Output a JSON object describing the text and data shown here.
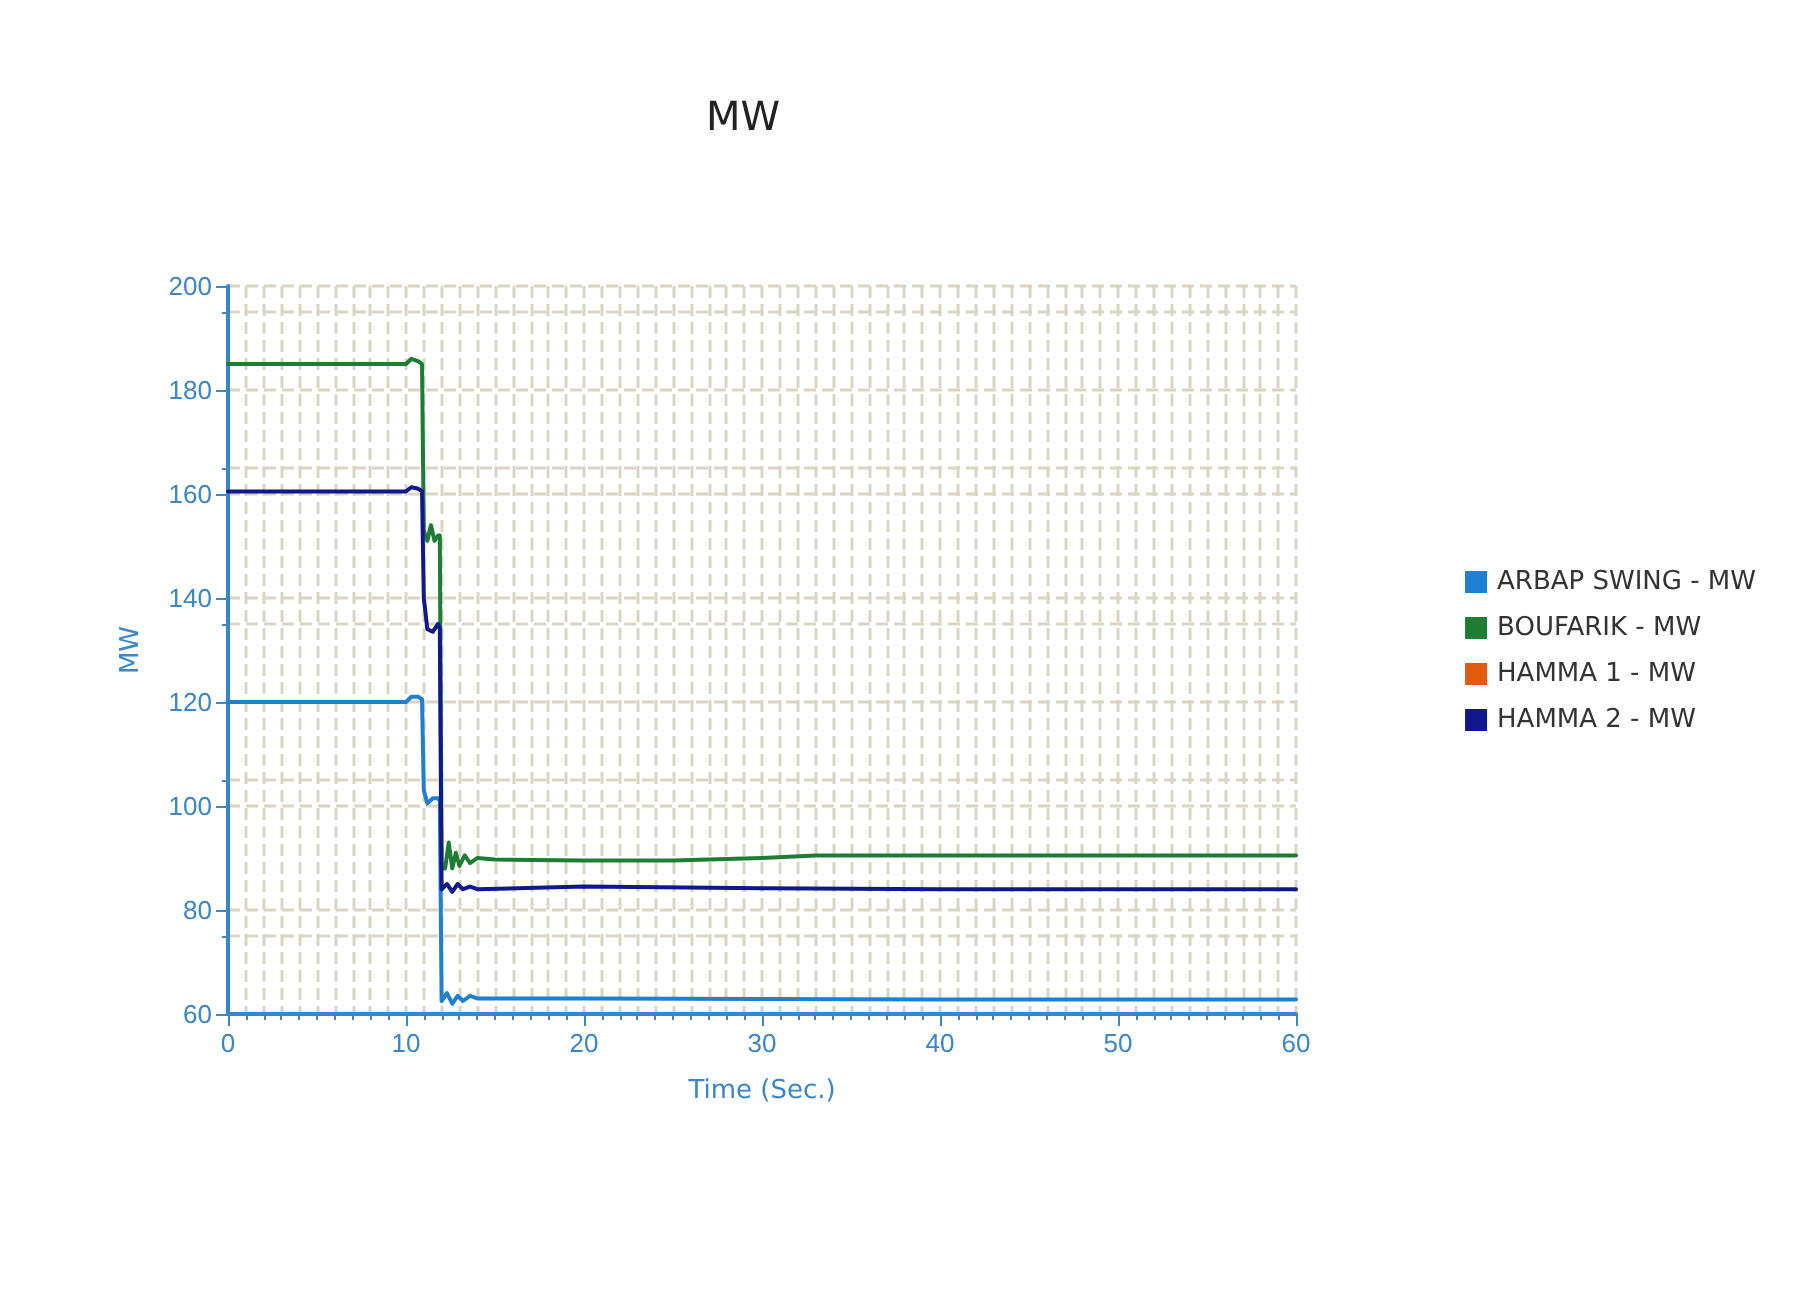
{
  "chart_data": {
    "type": "line",
    "title": "MW",
    "xlabel": "Time (Sec.)",
    "ylabel": "MW",
    "xlim": [
      0,
      60
    ],
    "xticks": [
      0,
      10,
      20,
      30,
      40,
      50,
      60
    ],
    "ylim": [
      60,
      200
    ],
    "yticks": [
      60,
      80,
      100,
      120,
      140,
      160,
      180,
      200
    ],
    "grid": true,
    "legend": "right",
    "marker": "none",
    "line_style": "solid",
    "series": [
      {
        "name": "ARBAP SWING - MW",
        "color": "#1f7fd0",
        "x": [
          0,
          10,
          10.3,
          10.7,
          10.9,
          11.0,
          11.2,
          11.5,
          11.8,
          11.9,
          12.0,
          12.3,
          12.6,
          12.9,
          13.2,
          13.6,
          14,
          20,
          40,
          60
        ],
        "values": [
          120,
          120,
          121,
          121,
          120.5,
          103,
          100.5,
          101.5,
          101.5,
          101,
          62.5,
          64,
          62,
          63.5,
          62.5,
          63.5,
          63,
          63,
          62.8,
          62.8
        ]
      },
      {
        "name": "BOUFARIK - MW",
        "color": "#1e7d35",
        "x": [
          0,
          10,
          10.3,
          10.7,
          10.9,
          11.0,
          11.2,
          11.4,
          11.6,
          11.8,
          11.9,
          12.0,
          12.2,
          12.4,
          12.6,
          12.8,
          13.0,
          13.3,
          13.6,
          14,
          15,
          20,
          25,
          30,
          33,
          40,
          50,
          60
        ],
        "values": [
          185,
          185,
          186,
          185.5,
          185,
          153,
          151,
          154,
          151,
          152,
          152,
          88,
          88,
          93,
          88,
          91,
          88.5,
          90.5,
          89,
          90,
          89.7,
          89.5,
          89.5,
          90,
          90.5,
          90.5,
          90.5,
          90.5
        ]
      },
      {
        "name": "HAMMA 1 - MW",
        "color": "#e05a10"
      },
      {
        "name": "HAMMA 2 - MW",
        "color": "#10188c",
        "x": [
          0,
          10,
          10.3,
          10.7,
          10.9,
          11.0,
          11.2,
          11.5,
          11.8,
          11.9,
          12.0,
          12.3,
          12.6,
          12.9,
          13.2,
          13.6,
          14,
          20,
          30,
          40,
          50,
          60
        ],
        "values": [
          160.5,
          160.5,
          161.3,
          161,
          160.5,
          140,
          134,
          133.5,
          135,
          134,
          84,
          85,
          83.5,
          85,
          84,
          84.5,
          84,
          84.5,
          84.2,
          84,
          84,
          84
        ]
      }
    ]
  }
}
